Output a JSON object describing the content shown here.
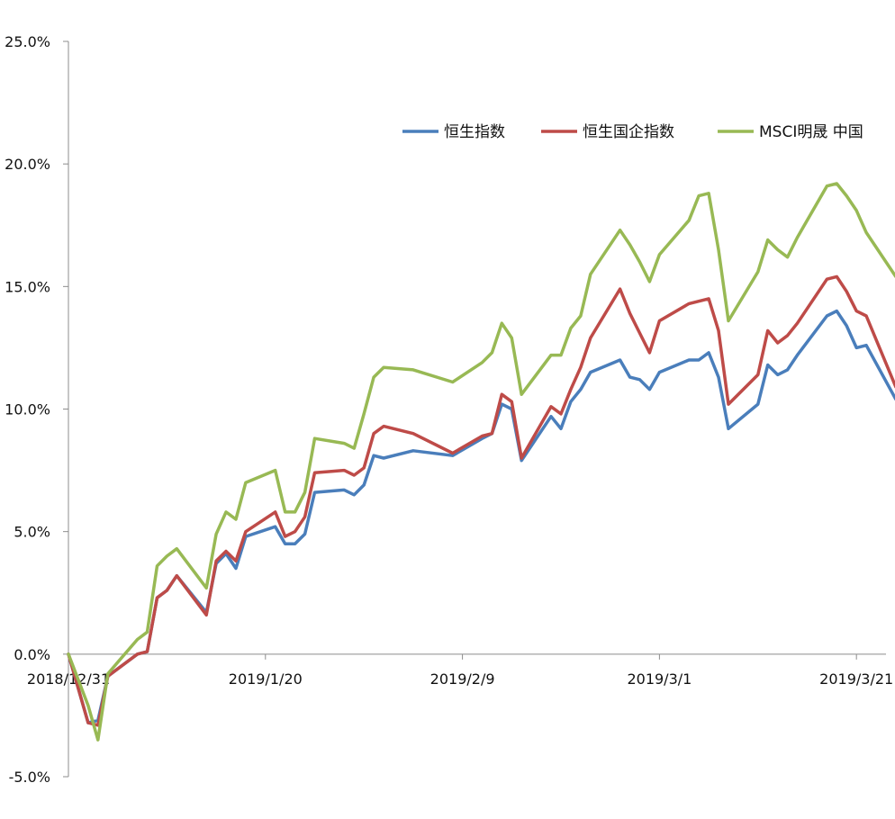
{
  "chart_data": {
    "type": "line",
    "title": "",
    "xlabel": "",
    "ylabel": "",
    "x_axis": {
      "start": "2018-12-31",
      "end": "2019-03-24",
      "tick_dates": [
        "2018-12-31",
        "2019-01-20",
        "2019-02-09",
        "2019-03-01",
        "2019-03-21"
      ],
      "tick_labels": [
        "2018/12/31",
        "2019/1/20",
        "2019/2/9",
        "2019/3/1",
        "2019/3/21"
      ]
    },
    "y_axis": {
      "ylim": [
        -5.0,
        25.0
      ],
      "ticks": [
        -5.0,
        0.0,
        5.0,
        10.0,
        15.0,
        20.0,
        25.0
      ],
      "tick_labels": [
        "-5.0%",
        "0.0%",
        "5.0%",
        "10.0%",
        "15.0%",
        "20.0%",
        "25.0%"
      ]
    },
    "grid": false,
    "legend_position": "top-right",
    "series": [
      {
        "name": "恒生指数",
        "color": "#4a7ebb",
        "points": [
          [
            "2018-12-31",
            0.0
          ],
          [
            "2019-01-02",
            -2.8
          ],
          [
            "2019-01-03",
            -2.7
          ],
          [
            "2019-01-04",
            -0.9
          ],
          [
            "2019-01-07",
            0.0
          ],
          [
            "2019-01-08",
            0.1
          ],
          [
            "2019-01-09",
            2.3
          ],
          [
            "2019-01-10",
            2.6
          ],
          [
            "2019-01-11",
            3.2
          ],
          [
            "2019-01-14",
            1.7
          ],
          [
            "2019-01-15",
            3.7
          ],
          [
            "2019-01-16",
            4.1
          ],
          [
            "2019-01-17",
            3.5
          ],
          [
            "2019-01-18",
            4.8
          ],
          [
            "2019-01-21",
            5.2
          ],
          [
            "2019-01-22",
            4.5
          ],
          [
            "2019-01-23",
            4.5
          ],
          [
            "2019-01-24",
            4.9
          ],
          [
            "2019-01-25",
            6.6
          ],
          [
            "2019-01-28",
            6.7
          ],
          [
            "2019-01-29",
            6.5
          ],
          [
            "2019-01-30",
            6.9
          ],
          [
            "2019-01-31",
            8.1
          ],
          [
            "2019-02-01",
            8.0
          ],
          [
            "2019-02-04",
            8.3
          ],
          [
            "2019-02-08",
            8.1
          ],
          [
            "2019-02-11",
            8.8
          ],
          [
            "2019-02-12",
            9.0
          ],
          [
            "2019-02-13",
            10.2
          ],
          [
            "2019-02-14",
            10.0
          ],
          [
            "2019-02-15",
            7.9
          ],
          [
            "2019-02-18",
            9.7
          ],
          [
            "2019-02-19",
            9.2
          ],
          [
            "2019-02-20",
            10.3
          ],
          [
            "2019-02-21",
            10.8
          ],
          [
            "2019-02-22",
            11.5
          ],
          [
            "2019-02-25",
            12.0
          ],
          [
            "2019-02-26",
            11.3
          ],
          [
            "2019-02-27",
            11.2
          ],
          [
            "2019-02-28",
            10.8
          ],
          [
            "2019-03-01",
            11.5
          ],
          [
            "2019-03-04",
            12.0
          ],
          [
            "2019-03-05",
            12.0
          ],
          [
            "2019-03-06",
            12.3
          ],
          [
            "2019-03-07",
            11.3
          ],
          [
            "2019-03-08",
            9.2
          ],
          [
            "2019-03-11",
            10.2
          ],
          [
            "2019-03-12",
            11.8
          ],
          [
            "2019-03-13",
            11.4
          ],
          [
            "2019-03-14",
            11.6
          ],
          [
            "2019-03-15",
            12.2
          ],
          [
            "2019-03-18",
            13.8
          ],
          [
            "2019-03-19",
            14.0
          ],
          [
            "2019-03-20",
            13.4
          ],
          [
            "2019-03-21",
            12.5
          ],
          [
            "2019-03-22",
            12.6
          ],
          [
            "2019-03-25",
            10.4
          ],
          [
            "2019-03-26",
            10.5
          ]
        ]
      },
      {
        "name": "恒生国企指数",
        "color": "#be4b48",
        "points": [
          [
            "2018-12-31",
            0.0
          ],
          [
            "2019-01-02",
            -2.8
          ],
          [
            "2019-01-03",
            -2.9
          ],
          [
            "2019-01-04",
            -0.9
          ],
          [
            "2019-01-07",
            0.0
          ],
          [
            "2019-01-08",
            0.1
          ],
          [
            "2019-01-09",
            2.3
          ],
          [
            "2019-01-10",
            2.6
          ],
          [
            "2019-01-11",
            3.2
          ],
          [
            "2019-01-14",
            1.6
          ],
          [
            "2019-01-15",
            3.8
          ],
          [
            "2019-01-16",
            4.2
          ],
          [
            "2019-01-17",
            3.8
          ],
          [
            "2019-01-18",
            5.0
          ],
          [
            "2019-01-21",
            5.8
          ],
          [
            "2019-01-22",
            4.8
          ],
          [
            "2019-01-23",
            5.0
          ],
          [
            "2019-01-24",
            5.6
          ],
          [
            "2019-01-25",
            7.4
          ],
          [
            "2019-01-28",
            7.5
          ],
          [
            "2019-01-29",
            7.3
          ],
          [
            "2019-01-30",
            7.6
          ],
          [
            "2019-01-31",
            9.0
          ],
          [
            "2019-02-01",
            9.3
          ],
          [
            "2019-02-04",
            9.0
          ],
          [
            "2019-02-08",
            8.2
          ],
          [
            "2019-02-11",
            8.9
          ],
          [
            "2019-02-12",
            9.0
          ],
          [
            "2019-02-13",
            10.6
          ],
          [
            "2019-02-14",
            10.3
          ],
          [
            "2019-02-15",
            8.0
          ],
          [
            "2019-02-18",
            10.1
          ],
          [
            "2019-02-19",
            9.8
          ],
          [
            "2019-02-20",
            10.8
          ],
          [
            "2019-02-21",
            11.7
          ],
          [
            "2019-02-22",
            12.9
          ],
          [
            "2019-02-25",
            14.9
          ],
          [
            "2019-02-26",
            13.9
          ],
          [
            "2019-02-27",
            13.1
          ],
          [
            "2019-02-28",
            12.3
          ],
          [
            "2019-03-01",
            13.6
          ],
          [
            "2019-03-04",
            14.3
          ],
          [
            "2019-03-05",
            14.4
          ],
          [
            "2019-03-06",
            14.5
          ],
          [
            "2019-03-07",
            13.2
          ],
          [
            "2019-03-08",
            10.2
          ],
          [
            "2019-03-11",
            11.4
          ],
          [
            "2019-03-12",
            13.2
          ],
          [
            "2019-03-13",
            12.7
          ],
          [
            "2019-03-14",
            13.0
          ],
          [
            "2019-03-15",
            13.5
          ],
          [
            "2019-03-18",
            15.3
          ],
          [
            "2019-03-19",
            15.4
          ],
          [
            "2019-03-20",
            14.8
          ],
          [
            "2019-03-21",
            14.0
          ],
          [
            "2019-03-22",
            13.8
          ],
          [
            "2019-03-25",
            10.9
          ],
          [
            "2019-03-26",
            10.9
          ]
        ]
      },
      {
        "name": "MSCI明晟 中国",
        "color": "#98b954",
        "points": [
          [
            "2018-12-31",
            0.0
          ],
          [
            "2019-01-02",
            -2.1
          ],
          [
            "2019-01-03",
            -3.5
          ],
          [
            "2019-01-04",
            -0.8
          ],
          [
            "2019-01-07",
            0.6
          ],
          [
            "2019-01-08",
            0.9
          ],
          [
            "2019-01-09",
            3.6
          ],
          [
            "2019-01-10",
            4.0
          ],
          [
            "2019-01-11",
            4.3
          ],
          [
            "2019-01-14",
            2.7
          ],
          [
            "2019-01-15",
            4.9
          ],
          [
            "2019-01-16",
            5.8
          ],
          [
            "2019-01-17",
            5.5
          ],
          [
            "2019-01-18",
            7.0
          ],
          [
            "2019-01-21",
            7.5
          ],
          [
            "2019-01-22",
            5.8
          ],
          [
            "2019-01-23",
            5.8
          ],
          [
            "2019-01-24",
            6.6
          ],
          [
            "2019-01-25",
            8.8
          ],
          [
            "2019-01-28",
            8.6
          ],
          [
            "2019-01-29",
            8.4
          ],
          [
            "2019-01-30",
            9.8
          ],
          [
            "2019-01-31",
            11.3
          ],
          [
            "2019-02-01",
            11.7
          ],
          [
            "2019-02-04",
            11.6
          ],
          [
            "2019-02-08",
            11.1
          ],
          [
            "2019-02-11",
            11.9
          ],
          [
            "2019-02-12",
            12.3
          ],
          [
            "2019-02-13",
            13.5
          ],
          [
            "2019-02-14",
            12.9
          ],
          [
            "2019-02-15",
            10.6
          ],
          [
            "2019-02-18",
            12.2
          ],
          [
            "2019-02-19",
            12.2
          ],
          [
            "2019-02-20",
            13.3
          ],
          [
            "2019-02-21",
            13.8
          ],
          [
            "2019-02-22",
            15.5
          ],
          [
            "2019-02-25",
            17.3
          ],
          [
            "2019-02-26",
            16.7
          ],
          [
            "2019-02-27",
            16.0
          ],
          [
            "2019-02-28",
            15.2
          ],
          [
            "2019-03-01",
            16.3
          ],
          [
            "2019-03-04",
            17.7
          ],
          [
            "2019-03-05",
            18.7
          ],
          [
            "2019-03-06",
            18.8
          ],
          [
            "2019-03-07",
            16.5
          ],
          [
            "2019-03-08",
            13.6
          ],
          [
            "2019-03-11",
            15.6
          ],
          [
            "2019-03-12",
            16.9
          ],
          [
            "2019-03-13",
            16.5
          ],
          [
            "2019-03-14",
            16.2
          ],
          [
            "2019-03-15",
            17.0
          ],
          [
            "2019-03-18",
            19.1
          ],
          [
            "2019-03-19",
            19.2
          ],
          [
            "2019-03-20",
            18.7
          ],
          [
            "2019-03-21",
            18.1
          ],
          [
            "2019-03-22",
            17.2
          ],
          [
            "2019-03-25",
            15.4
          ],
          [
            "2019-03-26",
            15.4
          ]
        ]
      }
    ]
  }
}
